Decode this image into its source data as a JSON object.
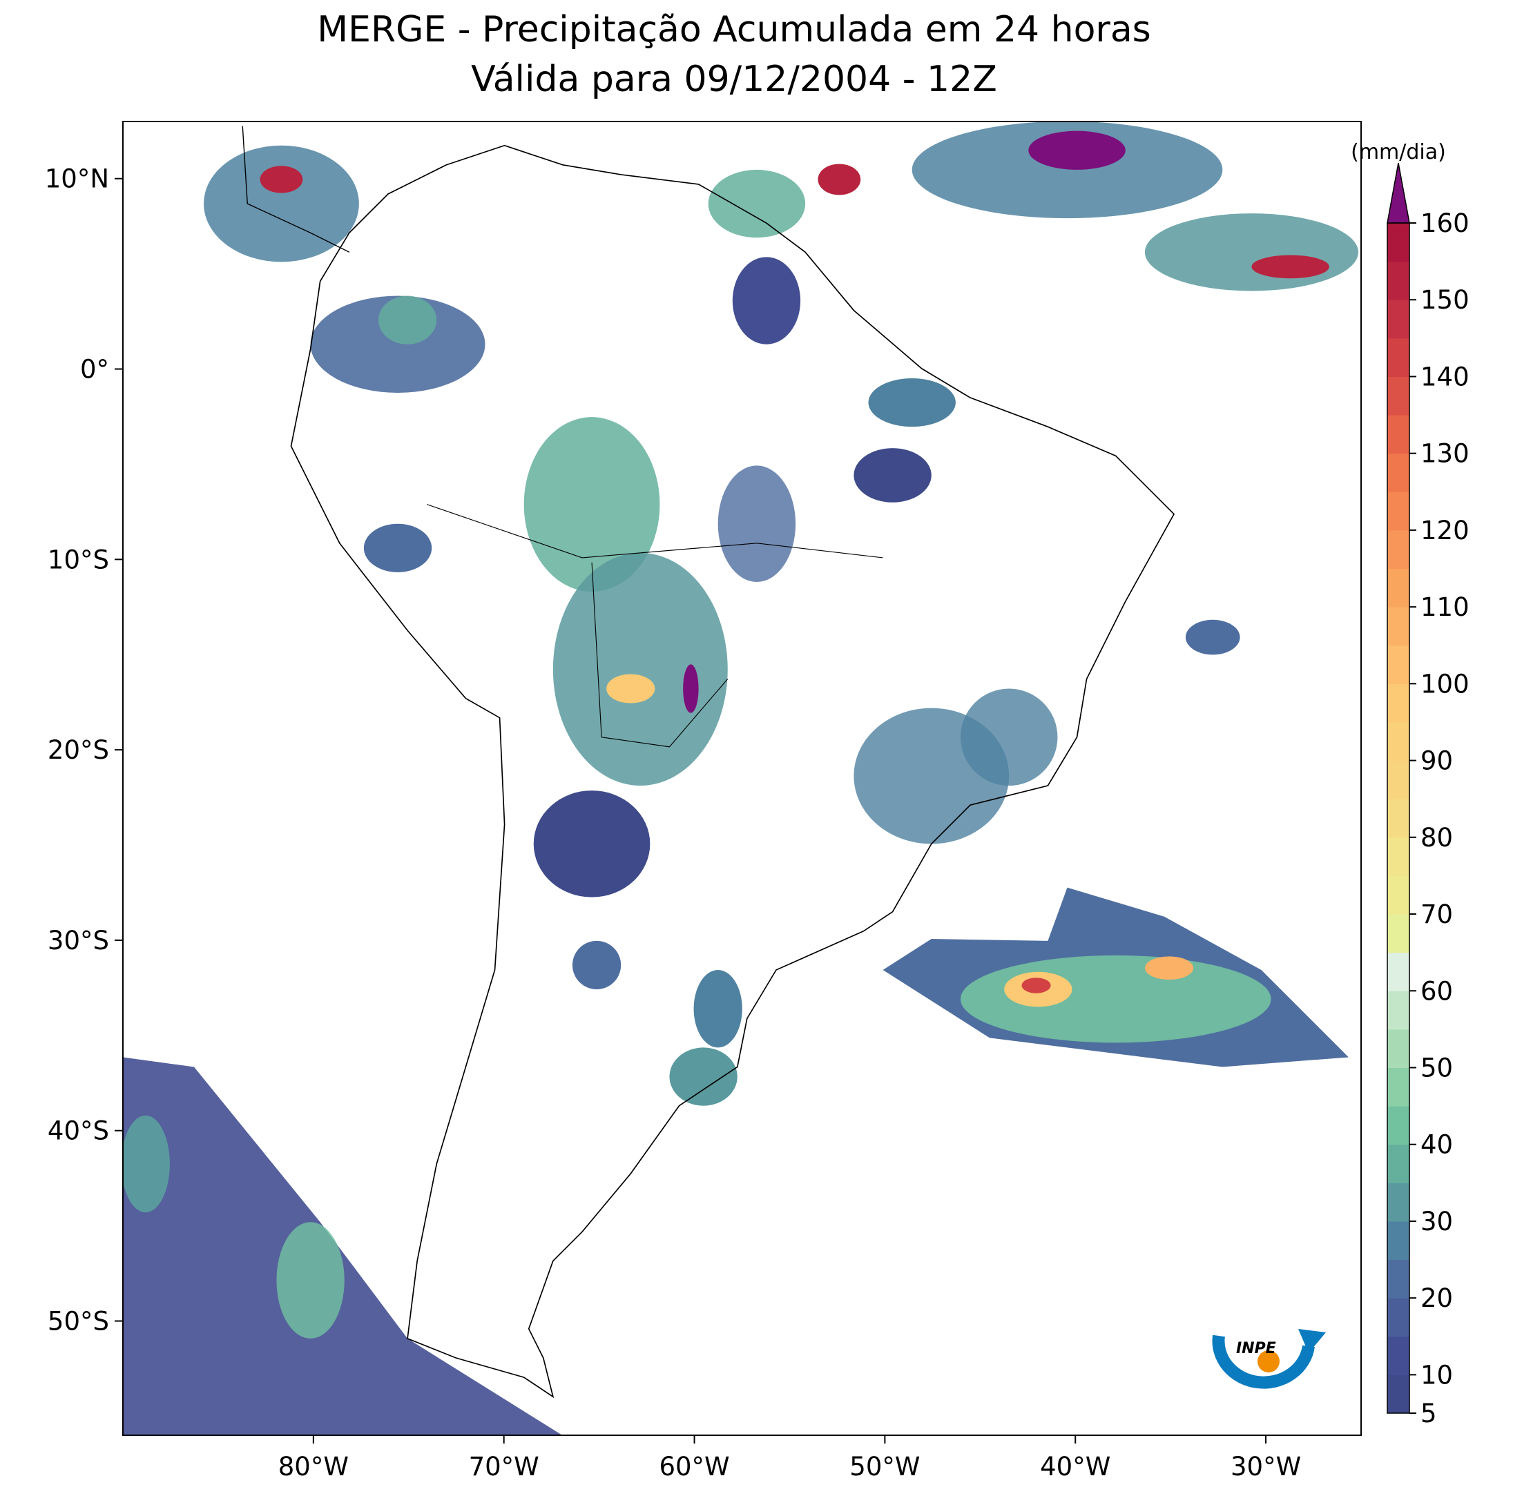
{
  "chart_data": {
    "type": "map",
    "title": "MERGE - Precipitação Acumulada em 24 horas",
    "subtitle": "Válida para 09/12/2004 - 12Z",
    "xlim": [
      -90,
      -25
    ],
    "ylim": [
      -56,
      13
    ],
    "xticks": [
      {
        "value": -80,
        "label": "80°W"
      },
      {
        "value": -70,
        "label": "70°W"
      },
      {
        "value": -60,
        "label": "60°W"
      },
      {
        "value": -50,
        "label": "50°W"
      },
      {
        "value": -40,
        "label": "40°W"
      },
      {
        "value": -30,
        "label": "30°W"
      }
    ],
    "yticks": [
      {
        "value": 10,
        "label": "10°N"
      },
      {
        "value": 0,
        "label": "0°"
      },
      {
        "value": -10,
        "label": "10°S"
      },
      {
        "value": -20,
        "label": "20°S"
      },
      {
        "value": -30,
        "label": "30°S"
      },
      {
        "value": -40,
        "label": "40°S"
      },
      {
        "value": -50,
        "label": "50°S"
      }
    ],
    "colorbar": {
      "label": "(mm/dia)",
      "levels": [
        5,
        10,
        15,
        20,
        25,
        30,
        35,
        40,
        45,
        50,
        55,
        60,
        65,
        70,
        75,
        80,
        85,
        90,
        95,
        100,
        105,
        110,
        115,
        120,
        125,
        130,
        135,
        140,
        145,
        150,
        155,
        160
      ],
      "colors": [
        "#3f4a8a",
        "#434f92",
        "#4a5e9a",
        "#4f6ea0",
        "#4f82a0",
        "#5a9a9e",
        "#64b09c",
        "#72c2a0",
        "#8ccfa6",
        "#a8dbb4",
        "#c4e6c8",
        "#ddf0e2",
        "#e6f098",
        "#eeea90",
        "#f2e48a",
        "#f5dc84",
        "#f8d47e",
        "#fad07a",
        "#fcca74",
        "#fdbf6f",
        "#fbb266",
        "#f9a55e",
        "#f79658",
        "#f48752",
        "#f0764c",
        "#e86448",
        "#dd5246",
        "#d24245",
        "#c53244",
        "#b8243f",
        "#ad173c"
      ],
      "extend_color": "#7b0f7b",
      "ticks": [
        5,
        10,
        20,
        30,
        40,
        50,
        60,
        70,
        80,
        90,
        100,
        110,
        120,
        130,
        140,
        150,
        160
      ]
    },
    "logo": "INPE"
  }
}
